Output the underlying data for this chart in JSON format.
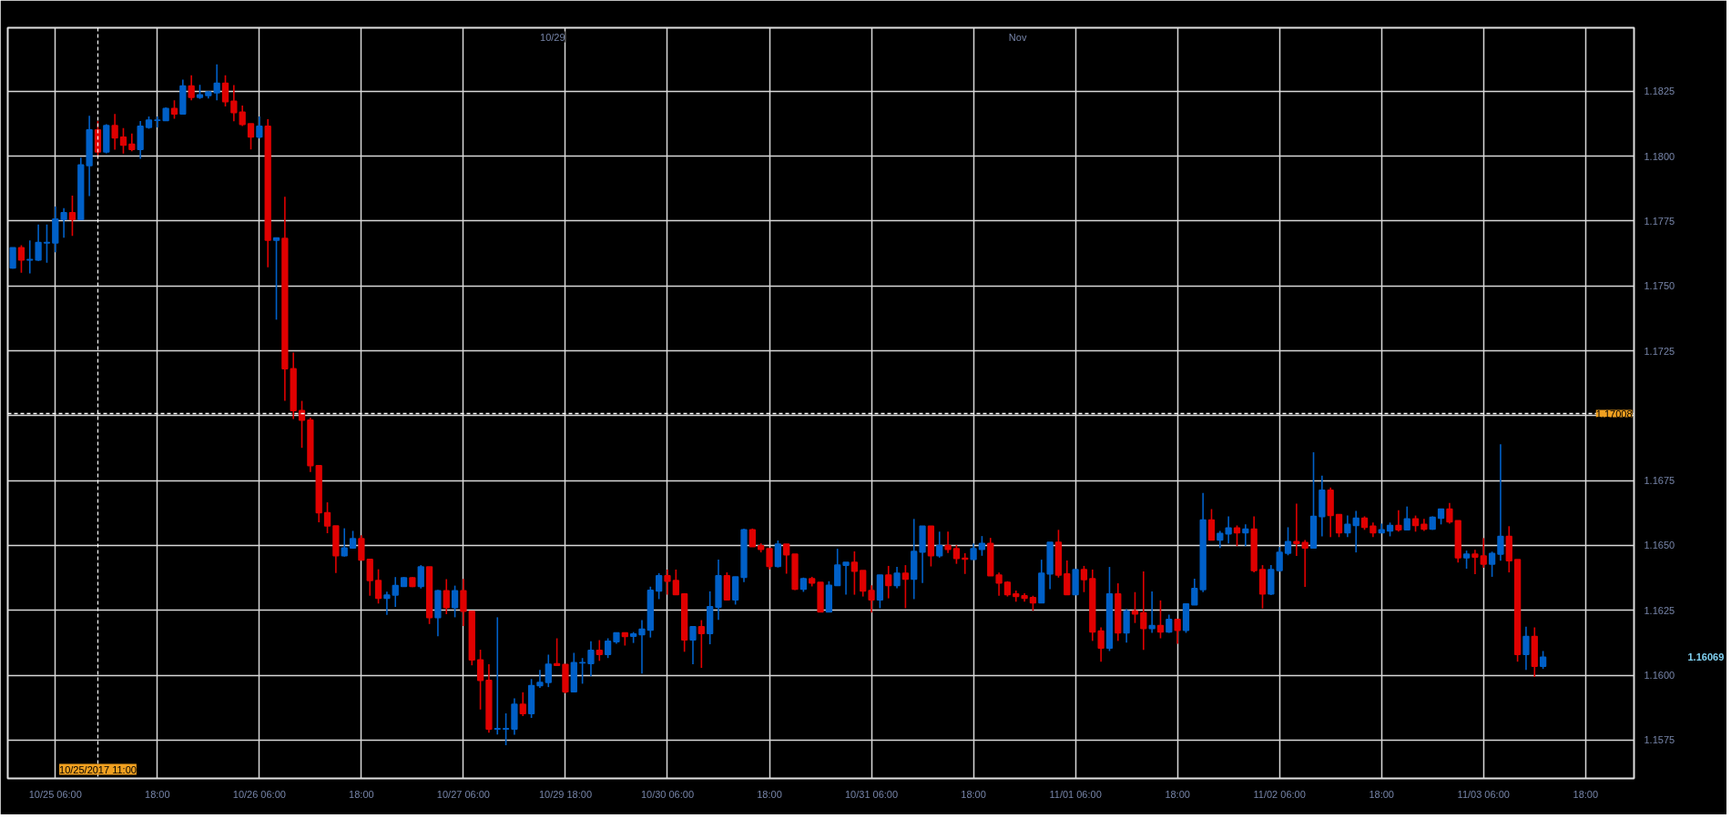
{
  "chart_data": {
    "type": "candlestick",
    "categories": [
      null,
      null,
      null,
      null,
      null,
      "10/25 06:00",
      null,
      null,
      null,
      null,
      null,
      null,
      null,
      null,
      null,
      null,
      null,
      "18:00",
      null,
      null,
      null,
      null,
      null,
      null,
      null,
      null,
      null,
      null,
      null,
      "10/26 06:00",
      null,
      null,
      null,
      null,
      null,
      null,
      null,
      null,
      null,
      null,
      null,
      "18:00",
      null,
      null,
      null,
      null,
      null,
      null,
      null,
      null,
      null,
      null,
      null,
      "10/27 06:00",
      null,
      null,
      null,
      null,
      null,
      null,
      null,
      null,
      null,
      null,
      null,
      "10/29 18:00",
      null,
      null,
      null,
      null,
      null,
      null,
      null,
      null,
      null,
      null,
      null,
      "10/30 06:00",
      null,
      null,
      null,
      null,
      null,
      null,
      null,
      null,
      null,
      null,
      null,
      "18:00",
      null,
      null,
      null,
      null,
      null,
      null,
      null,
      null,
      null,
      null,
      null,
      "10/31 06:00",
      null,
      null,
      null,
      null,
      null,
      null,
      null,
      null,
      null,
      null,
      null,
      "18:00",
      null,
      null,
      null,
      null,
      null,
      null,
      null,
      null,
      null,
      null,
      null,
      "11/01 06:00",
      null,
      null,
      null,
      null,
      null,
      null,
      null,
      null,
      null,
      null,
      null,
      "18:00",
      null,
      null,
      null,
      null,
      null,
      null,
      null,
      null,
      null,
      null,
      null,
      "11/02 06:00",
      null,
      null,
      null,
      null,
      null,
      null,
      null,
      null,
      null,
      null,
      null,
      "18:00",
      null,
      null,
      null,
      null,
      null,
      null,
      null,
      null,
      null,
      null,
      null,
      "11/03 06:00",
      null,
      null,
      null,
      null,
      null,
      null,
      null,
      null,
      null,
      null,
      null,
      "18:00"
    ],
    "ohlc": [
      [
        1.17569,
        1.17647,
        1.17567,
        1.17647
      ],
      [
        1.17647,
        1.17657,
        1.17551,
        1.176
      ],
      [
        1.176,
        1.17675,
        1.17548,
        1.17602
      ],
      [
        1.176,
        1.17737,
        1.17596,
        1.17667
      ],
      [
        1.17666,
        1.17737,
        1.17589,
        1.17667
      ],
      [
        1.17666,
        1.17806,
        1.1763,
        1.17758
      ],
      [
        1.17756,
        1.178,
        1.17686,
        1.17782
      ],
      [
        1.17782,
        1.17848,
        1.17693,
        1.17756
      ],
      [
        1.17756,
        1.17994,
        1.17756,
        1.17966
      ],
      [
        1.17964,
        1.18156,
        1.17846,
        1.18101
      ],
      [
        1.18101,
        1.18136,
        1.18002,
        1.18016
      ],
      [
        1.18016,
        1.18123,
        1.18011,
        1.18118
      ],
      [
        1.18118,
        1.18163,
        1.18025,
        1.18071
      ],
      [
        1.18073,
        1.18108,
        1.1801,
        1.18043
      ],
      [
        1.18046,
        1.18087,
        1.18019,
        1.18026
      ],
      [
        1.18026,
        1.18136,
        1.1799,
        1.18115
      ],
      [
        1.18111,
        1.18153,
        1.18106,
        1.18139
      ],
      [
        1.18138,
        1.18153,
        1.18111,
        1.18139
      ],
      [
        1.18137,
        1.18188,
        1.18137,
        1.18184
      ],
      [
        1.18184,
        1.18215,
        1.18144,
        1.18163
      ],
      [
        1.18163,
        1.18295,
        1.18163,
        1.18271
      ],
      [
        1.18271,
        1.18312,
        1.18215,
        1.18227
      ],
      [
        1.18227,
        1.18275,
        1.18221,
        1.18236
      ],
      [
        1.18234,
        1.1825,
        1.18222,
        1.18248
      ],
      [
        1.18244,
        1.18354,
        1.18215,
        1.18281
      ],
      [
        1.18281,
        1.18312,
        1.18192,
        1.1821
      ],
      [
        1.18212,
        1.18274,
        1.18135,
        1.18168
      ],
      [
        1.1817,
        1.18195,
        1.18116,
        1.18122
      ],
      [
        1.18125,
        1.18125,
        1.18026,
        1.18074
      ],
      [
        1.18074,
        1.18153,
        1.18068,
        1.18115
      ],
      [
        1.18115,
        1.18143,
        1.17572,
        1.17676
      ],
      [
        1.17676,
        1.17685,
        1.1737,
        1.17685
      ],
      [
        1.17683,
        1.17844,
        1.17057,
        1.17181
      ],
      [
        1.17181,
        1.17243,
        1.16987,
        1.1702
      ],
      [
        1.1702,
        1.17057,
        1.16876,
        1.16983
      ],
      [
        1.16983,
        1.16992,
        1.16783,
        1.16807
      ],
      [
        1.16807,
        1.1681,
        1.16589,
        1.16626
      ],
      [
        1.16626,
        1.16666,
        1.16547,
        1.16575
      ],
      [
        1.16575,
        1.16575,
        1.16394,
        1.1646
      ],
      [
        1.1646,
        1.16566,
        1.16457,
        1.1649
      ],
      [
        1.1649,
        1.16556,
        1.16487,
        1.16526
      ],
      [
        1.16526,
        1.16539,
        1.16444,
        1.16444
      ],
      [
        1.16446,
        1.16446,
        1.16306,
        1.16365
      ],
      [
        1.16365,
        1.16408,
        1.16276,
        1.16296
      ],
      [
        1.16296,
        1.16322,
        1.16232,
        1.16309
      ],
      [
        1.16309,
        1.16378,
        1.16263,
        1.16345
      ],
      [
        1.16342,
        1.16378,
        1.16342,
        1.16375
      ],
      [
        1.16375,
        1.16378,
        1.16339,
        1.16342
      ],
      [
        1.16342,
        1.16424,
        1.16334,
        1.16417
      ],
      [
        1.16417,
        1.16417,
        1.16197,
        1.16222
      ],
      [
        1.16222,
        1.16329,
        1.1615,
        1.16325
      ],
      [
        1.16325,
        1.1637,
        1.16235,
        1.1626
      ],
      [
        1.1626,
        1.16345,
        1.16223,
        1.16325
      ],
      [
        1.16325,
        1.16371,
        1.16189,
        1.16246
      ],
      [
        1.16246,
        1.16246,
        1.16038,
        1.16059
      ],
      [
        1.16059,
        1.16098,
        1.15868,
        1.1598
      ],
      [
        1.1598,
        1.16042,
        1.15778,
        1.15792
      ],
      [
        1.15792,
        1.16223,
        1.15771,
        1.15794
      ],
      [
        1.15792,
        1.15853,
        1.1573,
        1.15794
      ],
      [
        1.15792,
        1.15911,
        1.1577,
        1.15888
      ],
      [
        1.15888,
        1.15934,
        1.15842,
        1.15852
      ],
      [
        1.15852,
        1.15985,
        1.15835,
        1.1596
      ],
      [
        1.1596,
        1.1602,
        1.15951,
        1.15972
      ],
      [
        1.15972,
        1.16079,
        1.15954,
        1.16042
      ],
      [
        1.16044,
        1.16142,
        1.16038,
        1.16038
      ],
      [
        1.16041,
        1.16041,
        1.1593,
        1.15936
      ],
      [
        1.15936,
        1.16086,
        1.15936,
        1.16048
      ],
      [
        1.16047,
        1.16066,
        1.15967,
        1.16048
      ],
      [
        1.16045,
        1.16131,
        1.15996,
        1.16096
      ],
      [
        1.16096,
        1.16135,
        1.16055,
        1.1608
      ],
      [
        1.1608,
        1.16142,
        1.16066,
        1.16131
      ],
      [
        1.16129,
        1.16163,
        1.16121,
        1.16163
      ],
      [
        1.16163,
        1.16163,
        1.16114,
        1.16149
      ],
      [
        1.1615,
        1.16166,
        1.16124,
        1.16159
      ],
      [
        1.16156,
        1.16212,
        1.16006,
        1.16177
      ],
      [
        1.16174,
        1.16341,
        1.16145,
        1.16327
      ],
      [
        1.16324,
        1.16393,
        1.16293,
        1.16383
      ],
      [
        1.16383,
        1.16407,
        1.1631,
        1.16362
      ],
      [
        1.16365,
        1.16407,
        1.1631,
        1.1631
      ],
      [
        1.16313,
        1.16316,
        1.1609,
        1.16136
      ],
      [
        1.16136,
        1.16187,
        1.16042,
        1.16187
      ],
      [
        1.16187,
        1.16212,
        1.16028,
        1.1616
      ],
      [
        1.1616,
        1.16323,
        1.16119,
        1.16264
      ],
      [
        1.16262,
        1.16445,
        1.16213,
        1.16383
      ],
      [
        1.16383,
        1.16396,
        1.1629,
        1.1629
      ],
      [
        1.1629,
        1.16379,
        1.16272,
        1.16379
      ],
      [
        1.16377,
        1.16565,
        1.16359,
        1.1656
      ],
      [
        1.1656,
        1.16565,
        1.16495,
        1.16495
      ],
      [
        1.16499,
        1.16508,
        1.16473,
        1.16485
      ],
      [
        1.16487,
        1.16487,
        1.16408,
        1.16419
      ],
      [
        1.16419,
        1.16519,
        1.16415,
        1.16505
      ],
      [
        1.16505,
        1.16505,
        1.16391,
        1.16464
      ],
      [
        1.16466,
        1.16466,
        1.16328,
        1.16331
      ],
      [
        1.16331,
        1.16376,
        1.16321,
        1.16372
      ],
      [
        1.16372,
        1.16379,
        1.16342,
        1.16355
      ],
      [
        1.16358,
        1.16358,
        1.16244,
        1.16244
      ],
      [
        1.16244,
        1.16362,
        1.16244,
        1.16346
      ],
      [
        1.16345,
        1.16487,
        1.16345,
        1.16424
      ],
      [
        1.16423,
        1.16435,
        1.1631,
        1.16435
      ],
      [
        1.16435,
        1.16477,
        1.1631,
        1.16401
      ],
      [
        1.16403,
        1.16403,
        1.16303,
        1.16324
      ],
      [
        1.16326,
        1.16346,
        1.16241,
        1.1629
      ],
      [
        1.1629,
        1.16386,
        1.16258,
        1.16386
      ],
      [
        1.16386,
        1.16421,
        1.16296,
        1.16345
      ],
      [
        1.16345,
        1.16417,
        1.16335,
        1.16393
      ],
      [
        1.16393,
        1.16424,
        1.16258,
        1.1637
      ],
      [
        1.1637,
        1.16602,
        1.16293,
        1.16477
      ],
      [
        1.16474,
        1.16574,
        1.16355,
        1.16574
      ],
      [
        1.16574,
        1.16574,
        1.16419,
        1.1646
      ],
      [
        1.1646,
        1.16553,
        1.16453,
        1.165
      ],
      [
        1.165,
        1.16553,
        1.16471,
        1.16485
      ],
      [
        1.16487,
        1.16501,
        1.16429,
        1.1645
      ],
      [
        1.16451,
        1.1647,
        1.1639,
        1.16447
      ],
      [
        1.16446,
        1.16508,
        1.16446,
        1.16487
      ],
      [
        1.16485,
        1.16536,
        1.1646,
        1.16508
      ],
      [
        1.16508,
        1.16529,
        1.16383,
        1.16383
      ],
      [
        1.16386,
        1.16395,
        1.16306,
        1.16355
      ],
      [
        1.16358,
        1.16362,
        1.16303,
        1.1631
      ],
      [
        1.16313,
        1.16326,
        1.16283,
        1.16303
      ],
      [
        1.16306,
        1.16316,
        1.16283,
        1.16296
      ],
      [
        1.16299,
        1.16306,
        1.16248,
        1.16279
      ],
      [
        1.16279,
        1.16445,
        1.16279,
        1.16393
      ],
      [
        1.1639,
        1.16512,
        1.16331,
        1.16512
      ],
      [
        1.16512,
        1.1656,
        1.16376,
        1.16386
      ],
      [
        1.1639,
        1.16442,
        1.1631,
        1.1631
      ],
      [
        1.1631,
        1.16407,
        1.1631,
        1.16407
      ],
      [
        1.16407,
        1.16421,
        1.1632,
        1.16368
      ],
      [
        1.16372,
        1.16407,
        1.16132,
        1.16167
      ],
      [
        1.1617,
        1.16184,
        1.16052,
        1.16104
      ],
      [
        1.16104,
        1.16417,
        1.16093,
        1.16313
      ],
      [
        1.16313,
        1.16354,
        1.16132,
        1.16163
      ],
      [
        1.16163,
        1.16254,
        1.16125,
        1.16247
      ],
      [
        1.16247,
        1.1632,
        1.16201,
        1.16236
      ],
      [
        1.1624,
        1.164,
        1.16097,
        1.1618
      ],
      [
        1.1618,
        1.16323,
        1.16163,
        1.16191
      ],
      [
        1.16191,
        1.16288,
        1.16142,
        1.16167
      ],
      [
        1.16167,
        1.16233,
        1.16163,
        1.16215
      ],
      [
        1.16215,
        1.16215,
        1.16121,
        1.16173
      ],
      [
        1.16173,
        1.16274,
        1.16163,
        1.16274
      ],
      [
        1.16271,
        1.16372,
        1.16271,
        1.16334
      ],
      [
        1.1633,
        1.16702,
        1.1632,
        1.16598
      ],
      [
        1.16598,
        1.1664,
        1.16521,
        1.16521
      ],
      [
        1.16521,
        1.16556,
        1.1649,
        1.16546
      ],
      [
        1.16544,
        1.16612,
        1.16508,
        1.16567
      ],
      [
        1.16567,
        1.16577,
        1.16497,
        1.16549
      ],
      [
        1.16549,
        1.16581,
        1.16497,
        1.16563
      ],
      [
        1.16563,
        1.16612,
        1.16396,
        1.16403
      ],
      [
        1.16407,
        1.16424,
        1.16257,
        1.16313
      ],
      [
        1.16313,
        1.16424,
        1.16309,
        1.16407
      ],
      [
        1.16403,
        1.16494,
        1.16399,
        1.16473
      ],
      [
        1.1647,
        1.1657,
        1.16462,
        1.16515
      ],
      [
        1.16515,
        1.16661,
        1.16459,
        1.16508
      ],
      [
        1.16511,
        1.16521,
        1.1634,
        1.1649
      ],
      [
        1.1649,
        1.16859,
        1.1649,
        1.16612
      ],
      [
        1.16611,
        1.16769,
        1.16535,
        1.16713
      ],
      [
        1.16713,
        1.16723,
        1.16532,
        1.16615
      ],
      [
        1.16619,
        1.16619,
        1.16532,
        1.16549
      ],
      [
        1.16549,
        1.16615,
        1.16532,
        1.16581
      ],
      [
        1.16577,
        1.16633,
        1.16473,
        1.16605
      ],
      [
        1.16605,
        1.16612,
        1.1656,
        1.1657
      ],
      [
        1.16574,
        1.16588,
        1.16532,
        1.16549
      ],
      [
        1.16549,
        1.16584,
        1.16549,
        1.1656
      ],
      [
        1.16556,
        1.16588,
        1.16535,
        1.16577
      ],
      [
        1.16577,
        1.16636,
        1.16553,
        1.1656
      ],
      [
        1.1656,
        1.1665,
        1.1656,
        1.16602
      ],
      [
        1.16602,
        1.16615,
        1.16553,
        1.16577
      ],
      [
        1.16581,
        1.16602,
        1.16556,
        1.16563
      ],
      [
        1.16563,
        1.16612,
        1.1656,
        1.16608
      ],
      [
        1.16605,
        1.1664,
        1.16581,
        1.1664
      ],
      [
        1.1664,
        1.16664,
        1.16584,
        1.16591
      ],
      [
        1.16595,
        1.16595,
        1.16434,
        1.16452
      ],
      [
        1.16452,
        1.1648,
        1.1641,
        1.16466
      ],
      [
        1.16466,
        1.16483,
        1.16389,
        1.16455
      ],
      [
        1.16459,
        1.16528,
        1.16414,
        1.16428
      ],
      [
        1.16428,
        1.16476,
        1.16379,
        1.16469
      ],
      [
        1.16466,
        1.1689,
        1.16441,
        1.16535
      ],
      [
        1.16535,
        1.16574,
        1.16396,
        1.16441
      ],
      [
        1.16445,
        1.16445,
        1.16052,
        1.1608
      ],
      [
        1.1608,
        1.16187,
        1.1602,
        1.16149
      ],
      [
        1.16149,
        1.16184,
        1.15993,
        1.16034
      ],
      [
        1.16034,
        1.16093,
        1.16024,
        1.16069
      ],
      null,
      null,
      null,
      null,
      null
    ],
    "colors": [
      "#0060c8",
      "#e00000",
      "#0060c8",
      "#0060c8",
      "#0060c8",
      "#0060c8",
      "#0060c8",
      "#e00000",
      "#0060c8",
      "#0060c8",
      "#e00000",
      "#0060c8",
      "#e00000",
      "#e00000",
      "#e00000",
      "#0060c8",
      "#0060c8",
      "#0060c8",
      "#0060c8",
      "#e00000",
      "#0060c8",
      "#e00000",
      "#0060c8",
      "#0060c8",
      "#0060c8",
      "#e00000",
      "#e00000",
      "#e00000",
      "#e00000",
      "#0060c8",
      "#e00000",
      "#0060c8",
      "#e00000",
      "#e00000",
      "#e00000",
      "#e00000",
      "#e00000",
      "#e00000",
      "#e00000",
      "#0060c8",
      "#0060c8",
      "#e00000",
      "#e00000",
      "#e00000",
      "#0060c8",
      "#0060c8",
      "#0060c8",
      "#e00000",
      "#0060c8",
      "#e00000",
      "#0060c8",
      "#e00000",
      "#0060c8",
      "#e00000",
      "#e00000",
      "#e00000",
      "#e00000",
      "#0060c8",
      "#0060c8",
      "#0060c8",
      "#e00000",
      "#0060c8",
      "#0060c8",
      "#0060c8",
      "#e00000",
      "#e00000",
      "#0060c8",
      "#0060c8",
      "#0060c8",
      "#e00000",
      "#0060c8",
      "#0060c8",
      "#e00000",
      "#0060c8",
      "#0060c8",
      "#0060c8",
      "#0060c8",
      "#e00000",
      "#e00000",
      "#e00000",
      "#0060c8",
      "#e00000",
      "#0060c8",
      "#0060c8",
      "#e00000",
      "#0060c8",
      "#0060c8",
      "#e00000",
      "#e00000",
      "#e00000",
      "#0060c8",
      "#e00000",
      "#e00000",
      "#0060c8",
      "#e00000",
      "#e00000",
      "#0060c8",
      "#0060c8",
      "#0060c8",
      "#e00000",
      "#e00000",
      "#e00000",
      "#0060c8",
      "#e00000",
      "#0060c8",
      "#e00000",
      "#0060c8",
      "#0060c8",
      "#e00000",
      "#0060c8",
      "#e00000",
      "#e00000",
      "#e00000",
      "#0060c8",
      "#0060c8",
      "#e00000",
      "#e00000",
      "#e00000",
      "#e00000",
      "#e00000",
      "#e00000",
      "#0060c8",
      "#0060c8",
      "#e00000",
      "#e00000",
      "#0060c8",
      "#e00000",
      "#e00000",
      "#e00000",
      "#0060c8",
      "#e00000",
      "#0060c8",
      "#e00000",
      "#e00000",
      "#0060c8",
      "#e00000",
      "#0060c8",
      "#e00000",
      "#0060c8",
      "#0060c8",
      "#0060c8",
      "#e00000",
      "#0060c8",
      "#0060c8",
      "#e00000",
      "#0060c8",
      "#e00000",
      "#e00000",
      "#0060c8",
      "#0060c8",
      "#0060c8",
      "#e00000",
      "#e00000",
      "#0060c8",
      "#0060c8",
      "#e00000",
      "#e00000",
      "#0060c8",
      "#0060c8",
      "#e00000",
      "#e00000",
      "#0060c8",
      "#0060c8",
      "#e00000",
      "#0060c8",
      "#e00000",
      "#e00000",
      "#0060c8",
      "#0060c8",
      "#e00000",
      "#e00000",
      "#0060c8",
      "#e00000",
      "#e00000",
      "#0060c8",
      "#0060c8",
      "#e00000",
      "#e00000",
      "#0060c8",
      "#e00000",
      "#0060c8",
      null,
      null,
      null,
      null,
      null
    ],
    "ylim": [
      1.15602,
      1.18495
    ],
    "yticks": [
      {
        "value": 1.1575,
        "label": "1.1575"
      },
      {
        "value": 1.16,
        "label": "1.1600"
      },
      {
        "value": 1.1625,
        "label": "1.1625"
      },
      {
        "value": 1.165,
        "label": "1.1650"
      },
      {
        "value": 1.1675,
        "label": "1.1675"
      },
      {
        "value": 1.17,
        "label": null
      },
      {
        "value": 1.1725,
        "label": "1.1725"
      },
      {
        "value": 1.175,
        "label": "1.1750"
      },
      {
        "value": 1.1775,
        "label": "1.1775"
      },
      {
        "value": 1.18,
        "label": "1.1800"
      },
      {
        "value": 1.1825,
        "label": "1.1825"
      }
    ],
    "grid": true,
    "ref_lines": [
      {
        "axis": "y",
        "value": 1.17008,
        "label": "1.17008",
        "color": "#ffffff",
        "line_style": "dashed"
      }
    ],
    "annotations": [
      "1.16069",
      "10/29",
      "Nov",
      "10/25/2017 11:00"
    ]
  }
}
